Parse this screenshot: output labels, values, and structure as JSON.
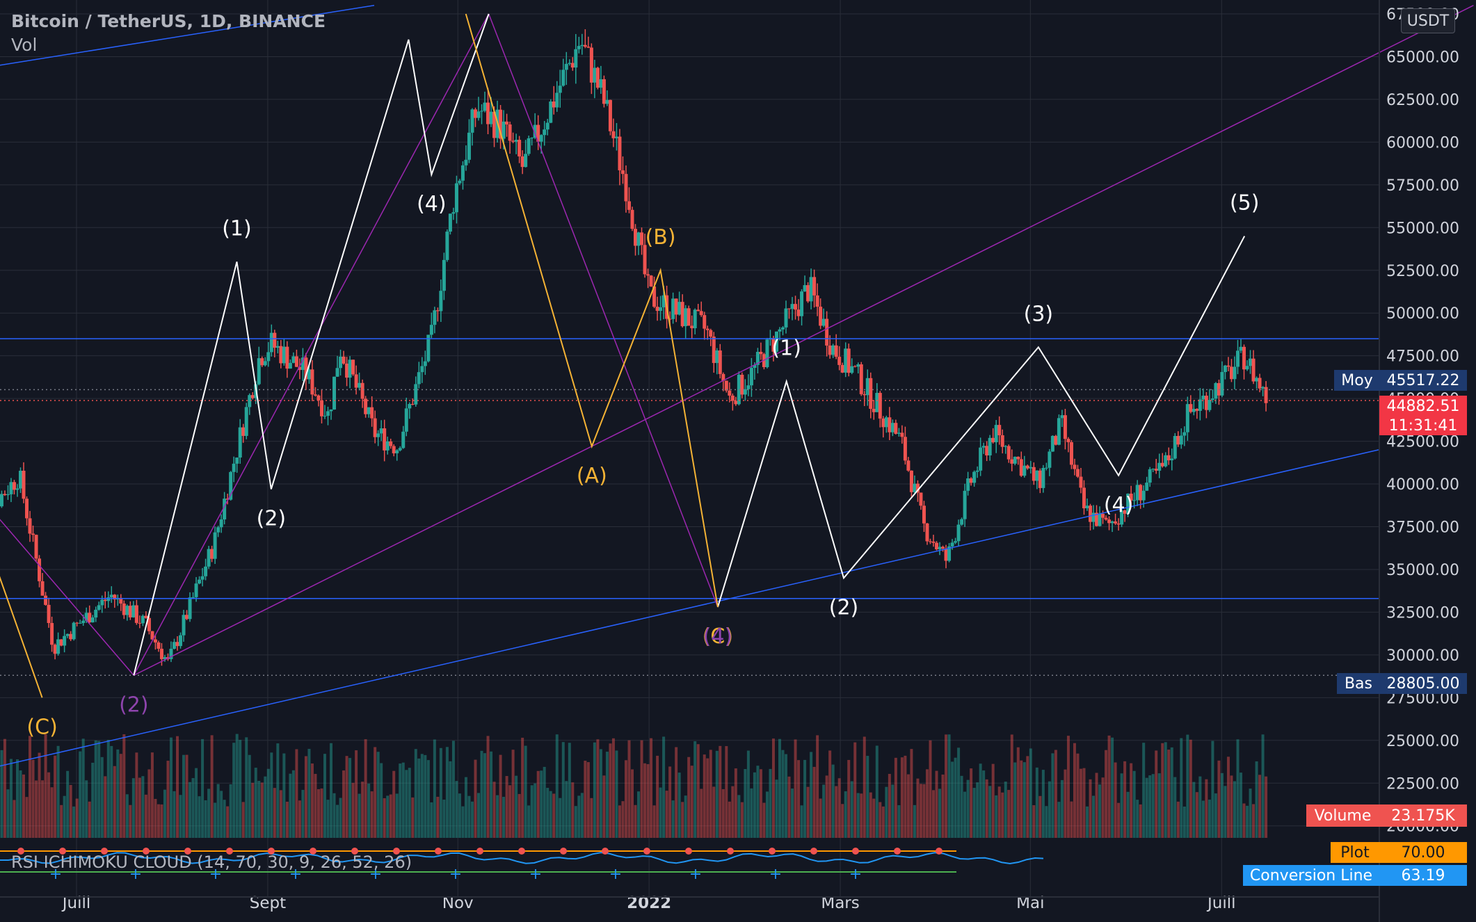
{
  "header": {
    "title": "Bitcoin / TetherUS, 1D, BINANCE",
    "volume_label": "Vol"
  },
  "currency": "USDT",
  "indicator": {
    "label": "RSI ICHIMOKU CLOUD (14, 70, 30, 9, 26, 52, 26)"
  },
  "colors": {
    "background": "#131722",
    "grid": "#2a2e39",
    "up": "#26a69a",
    "down": "#ef5350",
    "blue_line": "#2962ff",
    "purple_line": "#9c27b0",
    "white_wave": "#ffffff",
    "orange_wave": "#f5b335",
    "purple_label": "#8e44ad",
    "tag_dark": "#1e3a6e",
    "tag_red": "#f23645",
    "tag_orange": "#ff9800",
    "tag_blue": "#2196f3"
  },
  "badges": {
    "moy": {
      "label": "Moy",
      "value": "45517.22"
    },
    "last": {
      "value": "44882.51",
      "countdown": "11:31:41"
    },
    "bas": {
      "label": "Bas",
      "value": "28805.00"
    },
    "volume": {
      "label": "Volume",
      "value": "23.175K"
    },
    "plot": {
      "label": "Plot",
      "value": "70.00"
    },
    "conversion": {
      "label": "Conversion Line",
      "value": "63.19"
    }
  },
  "chart_data": {
    "type": "candlestick",
    "symbol": "Bitcoin / TetherUS, 1D, BINANCE",
    "ylim": [
      19500,
      67500
    ],
    "y_ticks": [
      "20000.00",
      "22500.00",
      "25000.00",
      "27500.00",
      "30000.00",
      "32500.00",
      "35000.00",
      "37500.00",
      "40000.00",
      "42500.00",
      "45000.00",
      "47500.00",
      "50000.00",
      "52500.00",
      "55000.00",
      "57500.00",
      "60000.00",
      "62500.00",
      "65000.00",
      "67500.00"
    ],
    "x_ticks": [
      "Juill",
      "Sept",
      "Nov",
      "2022",
      "Mars",
      "Mai",
      "Juill"
    ],
    "price_path": [
      [
        2021.41,
        37500
      ],
      [
        2021.45,
        40500
      ],
      [
        2021.48,
        30500
      ],
      [
        2021.53,
        33500
      ],
      [
        2021.56,
        31800
      ],
      [
        2021.58,
        29500
      ],
      [
        2021.62,
        36500
      ],
      [
        2021.66,
        47500
      ],
      [
        2021.67,
        48200
      ],
      [
        2021.7,
        46500
      ],
      [
        2021.72,
        44000
      ],
      [
        2021.73,
        48000
      ],
      [
        2021.76,
        43000
      ],
      [
        2021.78,
        42200
      ],
      [
        2021.81,
        48500
      ],
      [
        2021.83,
        57000
      ],
      [
        2021.85,
        62000
      ],
      [
        2021.87,
        61000
      ],
      [
        2021.89,
        58500
      ],
      [
        2021.91,
        61500
      ],
      [
        2021.94,
        66000
      ],
      [
        2021.96,
        62500
      ],
      [
        2021.98,
        57500
      ],
      [
        2022.0,
        51000
      ],
      [
        2022.05,
        49000
      ],
      [
        2022.07,
        45000
      ],
      [
        2022.09,
        46500
      ],
      [
        2022.12,
        49500
      ],
      [
        2022.14,
        51500
      ],
      [
        2022.16,
        48000
      ],
      [
        2022.18,
        46500
      ],
      [
        2022.22,
        42500
      ],
      [
        2022.24,
        37500
      ],
      [
        2022.26,
        35500
      ],
      [
        2022.28,
        40000
      ],
      [
        2022.3,
        43000
      ],
      [
        2022.32,
        41500
      ],
      [
        2022.34,
        40000
      ],
      [
        2022.36,
        43500
      ],
      [
        2022.38,
        38500
      ],
      [
        2022.4,
        37500
      ],
      [
        2022.42,
        39000
      ],
      [
        2022.45,
        41000
      ],
      [
        2022.47,
        44000
      ],
      [
        2022.5,
        46000
      ],
      [
        2022.52,
        47500
      ],
      [
        2022.54,
        44882.51
      ]
    ],
    "horizontal_lines": [
      48500,
      33300
    ],
    "dotted_levels": [
      45517.22,
      44882.51,
      28805.0
    ],
    "white_wave": [
      {
        "points": [
          [
            2021.55,
            28805
          ],
          [
            2021.64,
            53000
          ],
          [
            2021.67,
            39700
          ],
          [
            2021.79,
            66000
          ],
          [
            2021.81,
            58100
          ],
          [
            2021.86,
            67500
          ]
        ],
        "labels": [
          "",
          "(1)",
          "(2)",
          "",
          "(4)",
          ""
        ]
      },
      {
        "points": [
          [
            2022.06,
            32800
          ],
          [
            2022.12,
            46000
          ],
          [
            2022.17,
            34500
          ],
          [
            2022.34,
            48000
          ],
          [
            2022.41,
            40500
          ],
          [
            2022.52,
            54500
          ]
        ],
        "labels": [
          "",
          "(1)",
          "(2)",
          "(3)",
          "(4)",
          "(5)"
        ]
      }
    ],
    "orange_wave": [
      {
        "points": [
          [
            2021.42,
            37000
          ],
          [
            2021.47,
            27500
          ]
        ],
        "labels": [
          "",
          "(C)"
        ]
      },
      {
        "points": [
          [
            2021.84,
            67500
          ],
          [
            2021.95,
            42200
          ],
          [
            2022.01,
            52500
          ],
          [
            2022.06,
            32800
          ]
        ],
        "labels": [
          "",
          "(A)",
          "(B)",
          "(C)"
        ]
      }
    ],
    "purple_labels": [
      {
        "x": 2021.55,
        "y": 28805,
        "text": "(2)"
      },
      {
        "x": 2022.06,
        "y": 32800,
        "text": "(4)"
      }
    ],
    "volume_series_label": "Volume",
    "volume_last": "23.175K",
    "plot_value": 70.0,
    "conversion_line_value": 63.19
  }
}
